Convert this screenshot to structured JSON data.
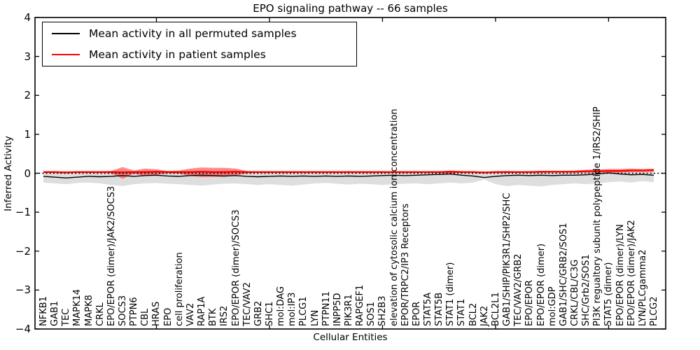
{
  "figure": {
    "title": "EPO signaling pathway -- 66 samples",
    "xlabel": "Cellular Entities",
    "ylabel": "Inferred Activity"
  },
  "legend": {
    "items": [
      {
        "label": "Mean activity in all permuted samples",
        "color": "#000000"
      },
      {
        "label": "Mean activity in patient samples",
        "color": "#ff0000"
      }
    ]
  },
  "chart_data": {
    "type": "line",
    "title": "EPO signaling pathway -- 66 samples",
    "xlabel": "Cellular Entities",
    "ylabel": "Inferred Activity",
    "ylim": [
      -4,
      4
    ],
    "ytick_labels": [
      "4",
      "3",
      "2",
      "1",
      "0",
      "−1",
      "−2",
      "−3",
      "−4"
    ],
    "grid": false,
    "zero_line": "dashed",
    "legend_position": "upper left",
    "categories": [
      "NFKB1",
      "GAB1",
      "TEC",
      "MAPK14",
      "MAPK8",
      "CRKL",
      "EPO/EPOR (dimer)/JAK2/SOCS3",
      "SOCS3",
      "PTPN6",
      "CBL",
      "HRAS",
      "EPO",
      "cell proliferation",
      "VAV2",
      "RAP1A",
      "BTK",
      "IRS2",
      "EPO/EPOR (dimer)/SOCS3",
      "TEC/VAV2",
      "GRB2",
      "SHC1",
      "mol:DAG",
      "mol:IP3",
      "PLCG1",
      "LYN",
      "PTPN11",
      "INPP5D",
      "PIK3R1",
      "RAPGEF1",
      "SOS1",
      "SH2B3",
      "elevation of cytosolic calcium ion concentration",
      "EPOR/TRPC2/IP3 Receptors",
      "EPOR",
      "STAT5A",
      "STAT5B",
      "STAT1 (dimer)",
      "STAT1",
      "BCL2",
      "JAK2",
      "BCL2L1",
      "GAB1/SHIP/PIK3R1/SHP2/SHC",
      "TEC/VAV2/GRB2",
      "EPO/EPOR",
      "EPO/EPOR (dimer)",
      "mol:GDP",
      "GAB1/SHC/GRB2/SOS1",
      "CRKL/CBL/C3G",
      "SHC/Grb2/SOS1",
      "PI3K regualtory subunit polypeptide 1/IRS2/SHIP",
      "STAT5 (dimer)",
      "EPO/EPOR (dimer)/LYN",
      "EPO/EPOR (dimer)/JAK2",
      "LYN/PLCgamma2",
      "PLCG2"
    ],
    "series": [
      {
        "name": "Mean activity in all permuted samples",
        "color": "#000000",
        "band_color": "rgba(0,0,0,0.13)",
        "values": [
          -0.08,
          -0.1,
          -0.12,
          -0.1,
          -0.08,
          -0.09,
          -0.08,
          -0.06,
          -0.08,
          -0.06,
          -0.05,
          -0.07,
          -0.08,
          -0.06,
          -0.05,
          -0.06,
          -0.07,
          -0.06,
          -0.08,
          -0.09,
          -0.08,
          -0.07,
          -0.08,
          -0.07,
          -0.08,
          -0.07,
          -0.08,
          -0.07,
          -0.08,
          -0.07,
          -0.06,
          -0.05,
          -0.06,
          -0.05,
          -0.04,
          -0.03,
          -0.02,
          -0.05,
          -0.07,
          -0.11,
          -0.08,
          -0.06,
          -0.05,
          -0.06,
          -0.05,
          -0.06,
          -0.05,
          -0.05,
          -0.04,
          -0.02,
          0.01,
          -0.02,
          -0.04,
          -0.03,
          -0.05
        ],
        "band_upper": [
          0.04,
          0.05,
          0.04,
          0.05,
          0.05,
          0.04,
          0.06,
          0.07,
          0.05,
          0.06,
          0.06,
          0.05,
          0.04,
          0.05,
          0.06,
          0.05,
          0.04,
          0.05,
          0.04,
          0.05,
          0.05,
          0.06,
          0.05,
          0.05,
          0.04,
          0.05,
          0.05,
          0.06,
          0.05,
          0.05,
          0.06,
          0.05,
          0.05,
          0.06,
          0.05,
          0.06,
          0.05,
          0.04,
          0.05,
          0.03,
          0.05,
          0.06,
          0.05,
          0.06,
          0.06,
          0.05,
          0.06,
          0.05,
          0.06,
          0.07,
          0.08,
          0.06,
          0.05,
          0.04,
          0.05
        ],
        "band_lower": [
          -0.24,
          -0.26,
          -0.28,
          -0.25,
          -0.24,
          -0.26,
          -0.3,
          -0.33,
          -0.28,
          -0.26,
          -0.25,
          -0.27,
          -0.28,
          -0.3,
          -0.32,
          -0.29,
          -0.27,
          -0.26,
          -0.28,
          -0.3,
          -0.28,
          -0.3,
          -0.32,
          -0.29,
          -0.26,
          -0.25,
          -0.27,
          -0.29,
          -0.27,
          -0.28,
          -0.3,
          -0.28,
          -0.27,
          -0.26,
          -0.28,
          -0.26,
          -0.24,
          -0.26,
          -0.24,
          -0.16,
          -0.28,
          -0.33,
          -0.3,
          -0.32,
          -0.34,
          -0.3,
          -0.28,
          -0.26,
          -0.28,
          -0.26,
          -0.23,
          -0.21,
          -0.24,
          -0.2,
          -0.23
        ]
      },
      {
        "name": "Mean activity in patient samples",
        "color": "#ff0000",
        "band_color": "rgba(255,0,0,0.45)",
        "values": [
          0.03,
          0.03,
          0.02,
          0.03,
          0.03,
          0.03,
          0.03,
          0.02,
          0.03,
          0.03,
          0.04,
          0.03,
          0.03,
          0.03,
          0.04,
          0.03,
          0.03,
          0.04,
          0.03,
          0.03,
          0.03,
          0.03,
          0.03,
          0.03,
          0.03,
          0.03,
          0.03,
          0.03,
          0.03,
          0.03,
          0.03,
          0.03,
          0.03,
          0.03,
          0.03,
          0.03,
          0.04,
          0.03,
          0.03,
          0.02,
          0.03,
          0.03,
          0.03,
          0.03,
          0.04,
          0.04,
          0.04,
          0.04,
          0.05,
          0.05,
          0.06,
          0.06,
          0.07,
          0.07,
          0.08
        ],
        "band_upper": [
          0.05,
          0.05,
          0.05,
          0.05,
          0.05,
          0.05,
          0.06,
          0.16,
          0.07,
          0.12,
          0.1,
          0.06,
          0.07,
          0.12,
          0.15,
          0.14,
          0.14,
          0.12,
          0.06,
          0.05,
          0.05,
          0.05,
          0.05,
          0.05,
          0.05,
          0.05,
          0.05,
          0.05,
          0.05,
          0.05,
          0.05,
          0.05,
          0.05,
          0.05,
          0.05,
          0.05,
          0.07,
          0.06,
          0.05,
          0.04,
          0.05,
          0.06,
          0.05,
          0.05,
          0.06,
          0.06,
          0.06,
          0.07,
          0.09,
          0.1,
          0.11,
          0.11,
          0.12,
          0.11,
          0.12
        ],
        "band_lower": [
          0.01,
          0.01,
          0.0,
          0.01,
          0.01,
          0.01,
          0.0,
          -0.14,
          -0.01,
          -0.07,
          -0.04,
          0.0,
          -0.01,
          -0.07,
          -0.1,
          -0.09,
          -0.09,
          -0.06,
          0.0,
          0.01,
          0.01,
          0.01,
          0.01,
          0.01,
          0.01,
          0.01,
          0.01,
          0.01,
          0.01,
          0.01,
          0.01,
          0.01,
          0.01,
          0.01,
          0.01,
          0.01,
          0.0,
          0.01,
          0.01,
          0.0,
          0.01,
          0.01,
          0.01,
          0.01,
          0.01,
          0.02,
          0.02,
          0.02,
          0.02,
          0.02,
          0.02,
          0.02,
          0.03,
          0.03,
          0.04
        ]
      }
    ]
  }
}
